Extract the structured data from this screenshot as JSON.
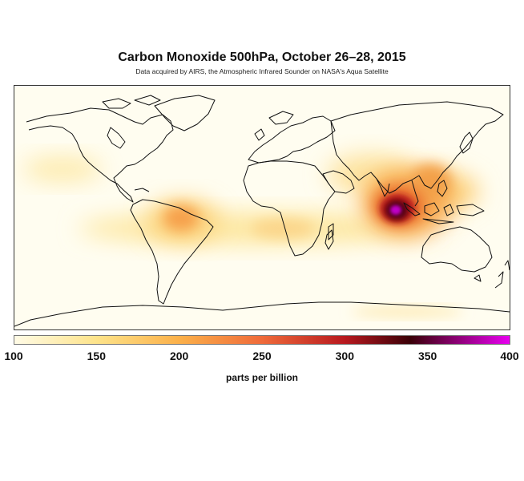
{
  "title": "Carbon Monoxide 500hPa, October 26–28, 2015",
  "subtitle": "Data acquired by AIRS, the Atmospheric Infrared Sounder on NASA's Aqua Satellite",
  "colorbar": {
    "ticks": [
      "100",
      "150",
      "200",
      "250",
      "300",
      "350",
      "400"
    ],
    "min": 100,
    "max": 400,
    "units_label": "parts per billion",
    "stops": [
      {
        "value": 100,
        "color": "#fffbe6"
      },
      {
        "value": 150,
        "color": "#fde38a"
      },
      {
        "value": 200,
        "color": "#fbb04a"
      },
      {
        "value": 250,
        "color": "#ef6a3a"
      },
      {
        "value": 300,
        "color": "#b8191f"
      },
      {
        "value": 340,
        "color": "#3a0008"
      },
      {
        "value": 400,
        "color": "#e800f0"
      }
    ]
  },
  "map": {
    "projection": "equirectangular",
    "background_color": "#fffdf0",
    "coastline_color": "#111111"
  }
}
